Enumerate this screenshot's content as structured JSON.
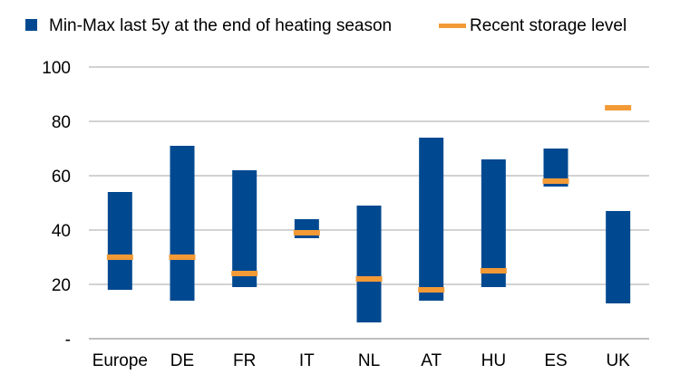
{
  "chart_data": {
    "type": "bar",
    "categories": [
      "Europe",
      "DE",
      "FR",
      "IT",
      "NL",
      "AT",
      "HU",
      "ES",
      "UK"
    ],
    "series": [
      {
        "name": "Min-Max last 5y at the end of heating season",
        "type": "range-bar",
        "min": [
          18,
          14,
          19,
          37,
          6,
          14,
          19,
          56,
          13
        ],
        "max": [
          54,
          71,
          62,
          44,
          49,
          74,
          66,
          70,
          47
        ]
      },
      {
        "name": "Recent storage level",
        "type": "marker",
        "values": [
          30,
          30,
          24,
          39,
          22,
          18,
          25,
          58,
          85
        ]
      }
    ],
    "y_ticks": [
      "-",
      "20",
      "40",
      "60",
      "80",
      "100"
    ],
    "ylim": [
      0,
      100
    ],
    "grid": true,
    "legend_position": "top",
    "colors": {
      "range": "#004990",
      "marker": "#F39A36",
      "grid": "#A6A6A6",
      "axis": "#7F7F7F"
    }
  }
}
